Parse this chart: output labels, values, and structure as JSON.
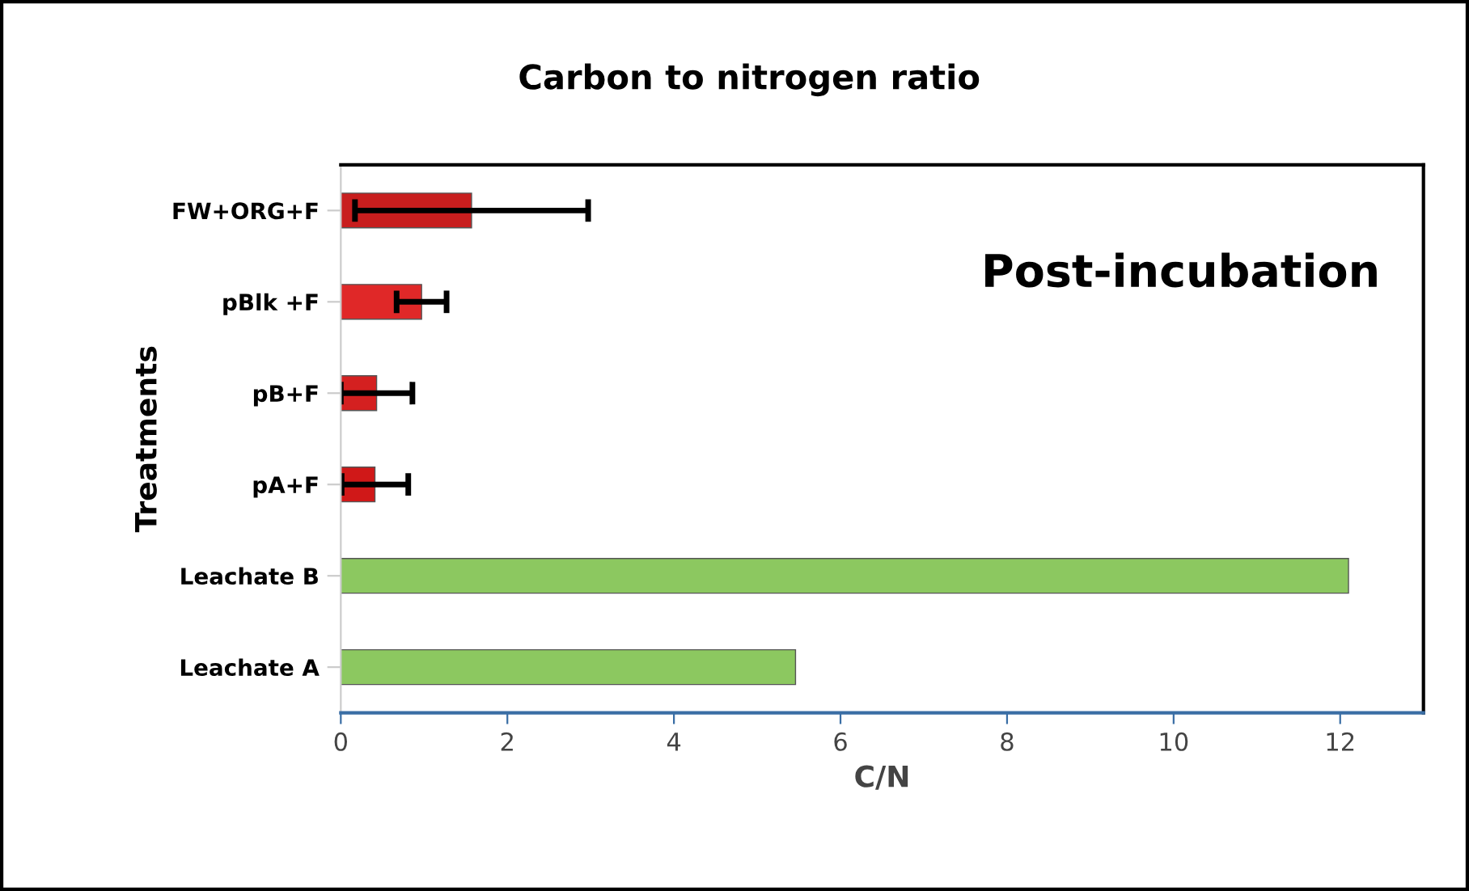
{
  "chart_data": {
    "type": "bar",
    "orientation": "horizontal",
    "title": "Carbon to nitrogen ratio",
    "xlabel": "C/N",
    "ylabel": "Treatments",
    "categories": [
      "FW+ORG+F",
      "pBlk +F",
      "pB+F",
      "pA+F",
      "Leachate B",
      "Leachate A"
    ],
    "values": [
      1.57,
      0.97,
      0.43,
      0.41,
      12.1,
      5.46
    ],
    "errors": [
      1.4,
      0.3,
      0.43,
      0.4,
      null,
      null
    ],
    "colors": [
      "#c81e1e",
      "#e02828",
      "#d42020",
      "#d01818",
      "#8cc860",
      "#8cc860"
    ],
    "xlim": [
      0,
      13
    ],
    "xticks": [
      0,
      2,
      4,
      6,
      8,
      10,
      12
    ],
    "grid": false,
    "annotations": [
      "Post-incubation"
    ]
  }
}
